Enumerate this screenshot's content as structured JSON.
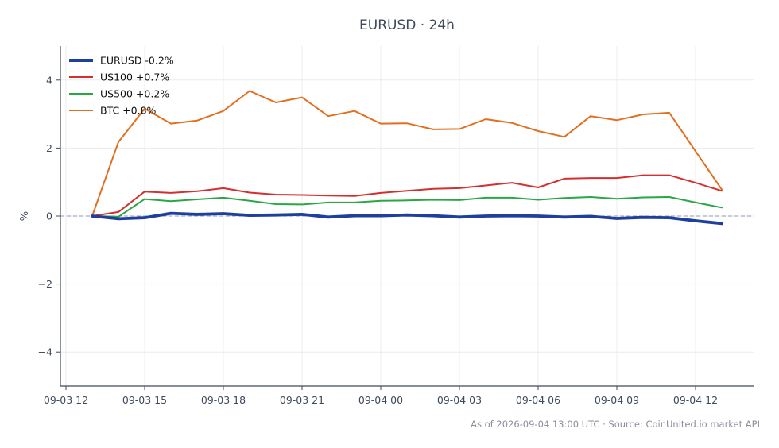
{
  "chart_data": {
    "type": "line",
    "title": "EURUSD · 24h",
    "xlabel": "",
    "ylabel": "%",
    "ylim": [
      -5,
      5
    ],
    "xlim": [
      "2026-09-03 12:00",
      "2026-09-04 13:00"
    ],
    "xticks": [
      "09-03 12",
      "09-03 15",
      "09-03 18",
      "09-03 21",
      "09-04 00",
      "09-04 03",
      "09-04 06",
      "09-04 09",
      "09-04 12"
    ],
    "yticks": [
      4,
      2,
      0,
      -2,
      -4
    ],
    "ytick_labels": [
      "4",
      "2",
      "0",
      "−2",
      "−4"
    ],
    "grid": true,
    "legend_position": "top-left",
    "baseline": 0,
    "x": [
      "2026-09-03 13:00",
      "2026-09-03 14:00",
      "2026-09-03 15:00",
      "2026-09-03 16:00",
      "2026-09-03 17:00",
      "2026-09-03 18:00",
      "2026-09-03 19:00",
      "2026-09-03 20:00",
      "2026-09-03 21:00",
      "2026-09-03 22:00",
      "2026-09-03 23:00",
      "2026-09-04 00:00",
      "2026-09-04 01:00",
      "2026-09-04 02:00",
      "2026-09-04 03:00",
      "2026-09-04 04:00",
      "2026-09-04 05:00",
      "2026-09-04 06:00",
      "2026-09-04 07:00",
      "2026-09-04 08:00",
      "2026-09-04 09:00",
      "2026-09-04 10:00",
      "2026-09-04 11:00",
      "2026-09-04 12:00",
      "2026-09-04 13:00"
    ],
    "series": [
      {
        "name": "EURUSD -0.2%",
        "color": "#1f3f9e",
        "values": [
          0,
          -0.08,
          -0.05,
          0.08,
          0.05,
          0.07,
          0.02,
          0.03,
          0.05,
          -0.03,
          0.01,
          0.01,
          0.03,
          0.01,
          -0.03,
          0.0,
          0.01,
          0.0,
          -0.03,
          -0.01,
          -0.07,
          -0.04,
          -0.05,
          -0.14,
          -0.22
        ]
      },
      {
        "name": "US100 +0.7%",
        "color": "#d32f2f",
        "values": [
          0,
          0.12,
          0.72,
          0.68,
          0.73,
          0.82,
          0.69,
          0.63,
          0.62,
          0.6,
          0.59,
          0.68,
          0.74,
          0.8,
          0.82,
          0.9,
          0.98,
          0.84,
          1.1,
          1.12,
          1.12,
          1.2,
          1.2,
          0.98,
          0.74
        ]
      },
      {
        "name": "US500 +0.2%",
        "color": "#28a745",
        "values": [
          0,
          -0.02,
          0.5,
          0.44,
          0.49,
          0.54,
          0.45,
          0.35,
          0.34,
          0.4,
          0.4,
          0.45,
          0.46,
          0.48,
          0.47,
          0.54,
          0.54,
          0.48,
          0.53,
          0.56,
          0.51,
          0.55,
          0.56,
          0.4,
          0.25
        ]
      },
      {
        "name": "BTC +0.8%",
        "color": "#e07020",
        "values": [
          0,
          2.18,
          3.16,
          2.72,
          2.81,
          3.09,
          3.68,
          3.34,
          3.49,
          2.94,
          3.09,
          2.72,
          2.73,
          2.55,
          2.56,
          2.85,
          2.74,
          2.5,
          2.33,
          2.94,
          2.82,
          2.99,
          3.04,
          1.91,
          0.78
        ]
      }
    ],
    "footer": "As of 2026-09-04 13:00 UTC · Source: CoinUnited.io market API"
  }
}
